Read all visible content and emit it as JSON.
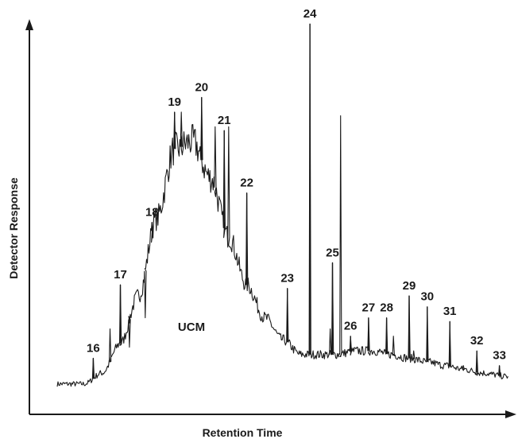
{
  "chart_data": {
    "type": "line",
    "title": "",
    "xlabel": "Retention Time",
    "ylabel": "Detector Response",
    "x_ticks": "none",
    "y_ticks": "none",
    "grid": false,
    "legend": "none",
    "annotation": "UCM",
    "baseline_profile": {
      "x": [
        0.0,
        0.06,
        0.1,
        0.14,
        0.18,
        0.22,
        0.26,
        0.3,
        0.34,
        0.38,
        0.42,
        0.46,
        0.5,
        0.54,
        0.58,
        0.62,
        0.66,
        0.7,
        0.74,
        0.78,
        0.82,
        0.86,
        0.9,
        0.94,
        1.0
      ],
      "y": [
        0.02,
        0.02,
        0.05,
        0.13,
        0.26,
        0.47,
        0.66,
        0.68,
        0.58,
        0.42,
        0.29,
        0.2,
        0.14,
        0.1,
        0.1,
        0.1,
        0.11,
        0.11,
        0.1,
        0.09,
        0.08,
        0.07,
        0.06,
        0.05,
        0.04
      ]
    },
    "peaks": [
      {
        "label": "16",
        "x": 0.08,
        "y": 0.09
      },
      {
        "label": "17",
        "x": 0.14,
        "y": 0.29
      },
      {
        "label": "18",
        "x": 0.21,
        "y": 0.46
      },
      {
        "label": "19",
        "x": 0.26,
        "y": 0.76
      },
      {
        "label": "20",
        "x": 0.32,
        "y": 0.8
      },
      {
        "label": "21",
        "x": 0.37,
        "y": 0.71
      },
      {
        "label": "22",
        "x": 0.42,
        "y": 0.54
      },
      {
        "label": "23",
        "x": 0.51,
        "y": 0.28
      },
      {
        "label": "24",
        "x": 0.56,
        "y": 1.0
      },
      {
        "label": "25",
        "x": 0.61,
        "y": 0.35
      },
      {
        "label": "26",
        "x": 0.65,
        "y": 0.15
      },
      {
        "label": "27",
        "x": 0.69,
        "y": 0.2
      },
      {
        "label": "28",
        "x": 0.73,
        "y": 0.2
      },
      {
        "label": "29",
        "x": 0.78,
        "y": 0.26
      },
      {
        "label": "30",
        "x": 0.82,
        "y": 0.23
      },
      {
        "label": "31",
        "x": 0.87,
        "y": 0.19
      },
      {
        "label": "32",
        "x": 0.93,
        "y": 0.11
      },
      {
        "label": "33",
        "x": 0.98,
        "y": 0.07
      }
    ],
    "unlabeled_peaks": [
      {
        "x": 0.117,
        "y": 0.17
      },
      {
        "x": 0.16,
        "y": 0.12
      },
      {
        "x": 0.195,
        "y": 0.2
      },
      {
        "x": 0.275,
        "y": 0.76
      },
      {
        "x": 0.35,
        "y": 0.72
      },
      {
        "x": 0.38,
        "y": 0.72
      },
      {
        "x": 0.605,
        "y": 0.17
      },
      {
        "x": 0.628,
        "y": 0.75
      },
      {
        "x": 0.745,
        "y": 0.15
      },
      {
        "x": 0.79,
        "y": 0.11
      },
      {
        "x": 0.9,
        "y": 0.07
      },
      {
        "x": 0.96,
        "y": 0.05
      }
    ]
  }
}
